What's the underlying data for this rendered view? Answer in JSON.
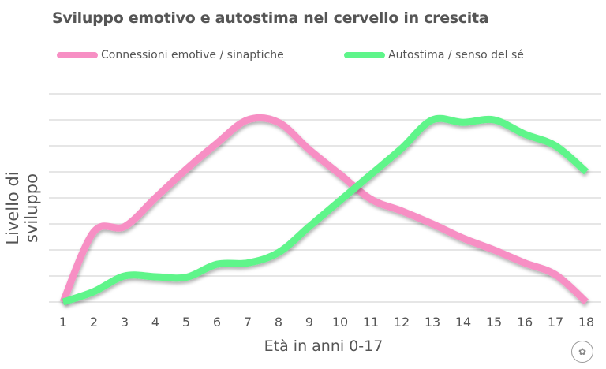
{
  "chart_data": {
    "type": "line",
    "title": "Sviluppo emotivo e autostima nel cervello in crescita",
    "xlabel": "Età in anni 0-17",
    "ylabel": "Livello di sviluppo",
    "x": [
      1,
      2,
      3,
      4,
      5,
      6,
      7,
      8,
      9,
      10,
      11,
      12,
      13,
      14,
      15,
      16,
      17,
      18
    ],
    "ylim": [
      0,
      8
    ],
    "grid": true,
    "legend_position": "top",
    "series": [
      {
        "name": "Connessioni emotive / sinaptiche",
        "color": "#f78fc4",
        "values": [
          0,
          2.7,
          2.9,
          4,
          5.1,
          6.1,
          7,
          6.9,
          5.85,
          4.9,
          3.95,
          3.5,
          3,
          2.45,
          2,
          1.5,
          1.05,
          0
        ]
      },
      {
        "name": "Autostima / senso del sé",
        "color": "#5ef58a",
        "values": [
          0,
          0.4,
          1,
          0.97,
          0.95,
          1.45,
          1.5,
          1.9,
          2.9,
          3.9,
          4.9,
          5.9,
          7,
          6.9,
          7,
          6.45,
          6,
          5
        ]
      }
    ]
  }
}
